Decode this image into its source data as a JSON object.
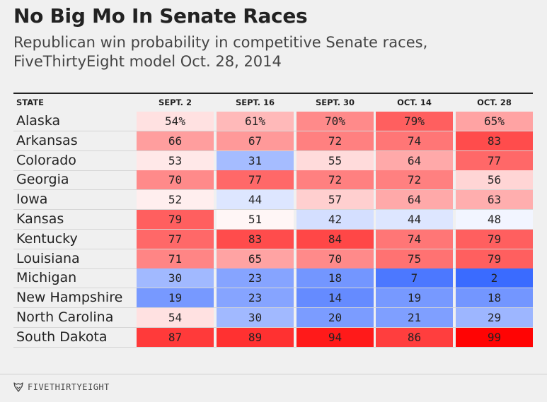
{
  "header": {
    "title": "No Big Mo In Senate Races",
    "subtitle": "Republican win probability in competitive Senate races, FiveThirtyEight model Oct. 28, 2014"
  },
  "chart_data": {
    "type": "table",
    "columns": [
      "STATE",
      "SEPT. 2",
      "SEPT. 16",
      "SEPT. 30",
      "OCT. 14",
      "OCT. 28"
    ],
    "rows": [
      {
        "state": "Alaska",
        "values": [
          54,
          61,
          70,
          79,
          65
        ],
        "labels": [
          "54%",
          "61%",
          "70%",
          "79%",
          "65%"
        ]
      },
      {
        "state": "Arkansas",
        "values": [
          66,
          67,
          72,
          74,
          83
        ],
        "labels": [
          "66",
          "67",
          "72",
          "74",
          "83"
        ]
      },
      {
        "state": "Colorado",
        "values": [
          53,
          31,
          55,
          64,
          77
        ],
        "labels": [
          "53",
          "31",
          "55",
          "64",
          "77"
        ]
      },
      {
        "state": "Georgia",
        "values": [
          70,
          77,
          72,
          72,
          56
        ],
        "labels": [
          "70",
          "77",
          "72",
          "72",
          "56"
        ]
      },
      {
        "state": "Iowa",
        "values": [
          52,
          44,
          57,
          64,
          63
        ],
        "labels": [
          "52",
          "44",
          "57",
          "64",
          "63"
        ]
      },
      {
        "state": "Kansas",
        "values": [
          79,
          51,
          42,
          44,
          48
        ],
        "labels": [
          "79",
          "51",
          "42",
          "44",
          "48"
        ]
      },
      {
        "state": "Kentucky",
        "values": [
          77,
          83,
          84,
          74,
          79
        ],
        "labels": [
          "77",
          "83",
          "84",
          "74",
          "79"
        ]
      },
      {
        "state": "Louisiana",
        "values": [
          71,
          65,
          70,
          75,
          79
        ],
        "labels": [
          "71",
          "65",
          "70",
          "75",
          "79"
        ]
      },
      {
        "state": "Michigan",
        "values": [
          30,
          23,
          18,
          7,
          2
        ],
        "labels": [
          "30",
          "23",
          "18",
          "7",
          "2"
        ]
      },
      {
        "state": "New Hampshire",
        "values": [
          19,
          23,
          14,
          19,
          18
        ],
        "labels": [
          "19",
          "23",
          "14",
          "19",
          "18"
        ]
      },
      {
        "state": "North Carolina",
        "values": [
          54,
          30,
          20,
          21,
          29
        ],
        "labels": [
          "54",
          "30",
          "20",
          "21",
          "29"
        ]
      },
      {
        "state": "South Dakota",
        "values": [
          87,
          89,
          94,
          86,
          99
        ],
        "labels": [
          "87",
          "89",
          "94",
          "86",
          "99"
        ]
      }
    ],
    "color_scale": {
      "low": "#3366ff",
      "mid": "#ffffff",
      "high": "#ff0000"
    }
  },
  "footer": {
    "brand": "FIVETHIRTYEIGHT",
    "logo_icon": "fox-icon"
  }
}
